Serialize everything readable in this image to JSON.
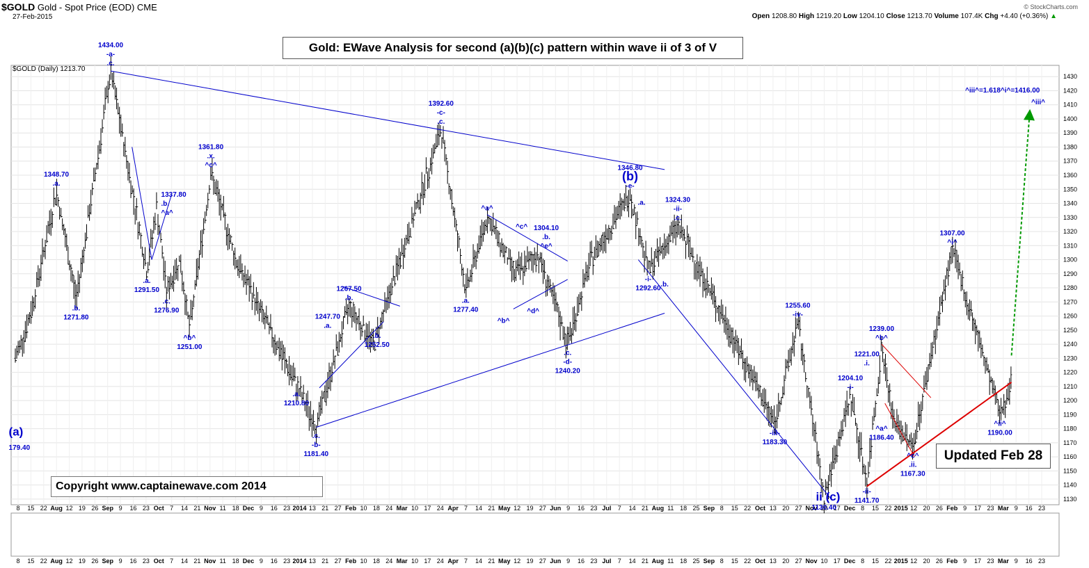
{
  "header": {
    "symbol": "$GOLD",
    "name": "Gold - Spot Price (EOD)",
    "exchange": "CME",
    "date": "27-Feb-2015",
    "ohlc": {
      "open_label": "Open",
      "open": "1208.80",
      "high_label": "High",
      "high": "1219.20",
      "low_label": "Low",
      "low": "1204.10",
      "close_label": "Close",
      "close": "1213.70",
      "volume_label": "Volume",
      "volume": "107.4K",
      "chg_label": "Chg",
      "chg": "+4.40 (+0.36%)",
      "chg_arrow": "▲"
    },
    "watermark": "© StockCharts.com"
  },
  "legend": "$GOLD (Daily) 1213.70",
  "title_box": "Gold: EWave Analysis for second (a)(b)(c) pattern within wave ii of 3 of V",
  "copyright_box": "Copyright   www.captainewave.com 2014",
  "updated_box": "Updated Feb 28",
  "colors": {
    "wave_label": "#0000cc",
    "trend_line": "#0000cc",
    "support_line": "#dd0000",
    "projection": "#009900",
    "bars": "#000000"
  },
  "chart_data": {
    "type": "ohlc",
    "ylim": [
      1126,
      1438
    ],
    "y_ticks": [
      1130,
      1140,
      1150,
      1160,
      1170,
      1180,
      1190,
      1200,
      1210,
      1220,
      1230,
      1240,
      1250,
      1260,
      1270,
      1280,
      1290,
      1300,
      1310,
      1320,
      1330,
      1340,
      1350,
      1360,
      1370,
      1380,
      1390,
      1400,
      1410,
      1420,
      1430
    ],
    "x_tick_labels": [
      "8",
      "15",
      "22",
      "Aug",
      "12",
      "19",
      "26",
      "Sep",
      "9",
      "16",
      "23",
      "Oct",
      "7",
      "14",
      "21",
      "Nov",
      "11",
      "18",
      "Dec",
      "9",
      "16",
      "23",
      "2014",
      "13",
      "21",
      "27",
      "Feb",
      "10",
      "18",
      "24",
      "Mar",
      "10",
      "17",
      "24",
      "Apr",
      "7",
      "14",
      "21",
      "May",
      "12",
      "19",
      "27",
      "Jun",
      "9",
      "16",
      "23",
      "Jul",
      "7",
      "14",
      "21",
      "Aug",
      "11",
      "18",
      "25",
      "Sep",
      "8",
      "15",
      "22",
      "Oct",
      "13",
      "20",
      "27",
      "Nov",
      "10",
      "17",
      "Dec",
      "8",
      "15",
      "22",
      "2015",
      "12",
      "20",
      "26",
      "Feb",
      "9",
      "17",
      "23",
      "Mar",
      "9",
      "16",
      "23"
    ],
    "path_pivots": [
      [
        "2013-07-01",
        1230
      ],
      [
        "2013-07-10",
        1260
      ],
      [
        "2013-07-26",
        1348.7
      ],
      [
        "2013-08-07",
        1271.8
      ],
      [
        "2013-08-28",
        1434.0
      ],
      [
        "2013-09-19",
        1291.5
      ],
      [
        "2013-09-25",
        1337.8
      ],
      [
        "2013-10-01",
        1276.9
      ],
      [
        "2013-10-09",
        1300
      ],
      [
        "2013-10-15",
        1251.0
      ],
      [
        "2013-10-28",
        1361.8
      ],
      [
        "2013-11-12",
        1300
      ],
      [
        "2013-12-19",
        1210.8
      ],
      [
        "2013-12-31",
        1181.4
      ],
      [
        "2014-01-20",
        1267.5
      ],
      [
        "2014-02-04",
        1240
      ],
      [
        "2014-03-17",
        1392.6
      ],
      [
        "2014-04-01",
        1277.4
      ],
      [
        "2014-04-14",
        1331
      ],
      [
        "2014-05-01",
        1290
      ],
      [
        "2014-05-15",
        1304.1
      ],
      [
        "2014-06-02",
        1240.2
      ],
      [
        "2014-06-16",
        1300
      ],
      [
        "2014-07-10",
        1346.8
      ],
      [
        "2014-07-21",
        1292.6
      ],
      [
        "2014-08-08",
        1324.3
      ],
      [
        "2014-10-06",
        1183.3
      ],
      [
        "2014-10-20",
        1255.6
      ],
      [
        "2014-11-05",
        1130.4
      ],
      [
        "2014-11-21",
        1204.1
      ],
      [
        "2014-12-01",
        1141.7
      ],
      [
        "2014-12-10",
        1239.0
      ],
      [
        "2014-12-17",
        1186.4
      ],
      [
        "2014-12-29",
        1167.3
      ],
      [
        "2015-01-22",
        1307.0
      ],
      [
        "2015-02-20",
        1190.0
      ],
      [
        "2015-02-27",
        1213.7
      ]
    ],
    "wave_labels": [
      {
        "x": "2013-08-28",
        "y": 1434.0,
        "lines": [
          "1434.00",
          "-a-",
          ".c."
        ],
        "pos": "above"
      },
      {
        "x": "2013-07-26",
        "y": 1348.7,
        "lines": [
          "1348.70",
          ".a."
        ],
        "pos": "above"
      },
      {
        "x": "2013-08-07",
        "y": 1271.8,
        "lines": [
          ".b.",
          "1271.80"
        ],
        "pos": "below"
      },
      {
        "x": "2013-09-19",
        "y": 1291.5,
        "lines": [
          ".a.",
          "1291.50"
        ],
        "pos": "below"
      },
      {
        "x": "2013-09-26",
        "y": 1337.8,
        "lines": [
          "1337.80",
          ".b.",
          "^a^"
        ],
        "pos": "right"
      },
      {
        "x": "2013-10-01",
        "y": 1276.9,
        "lines": [
          ".c.",
          "1276.90"
        ],
        "pos": "below"
      },
      {
        "x": "2013-10-15",
        "y": 1251.0,
        "lines": [
          "^b^",
          "1251.00"
        ],
        "pos": "below"
      },
      {
        "x": "2013-10-28",
        "y": 1361.8,
        "lines": [
          "1361.80",
          ".x.",
          "^c^"
        ],
        "pos": "above"
      },
      {
        "x": "2013-12-19",
        "y": 1210.8,
        "lines": [
          ".a.",
          "1210.80"
        ],
        "pos": "below"
      },
      {
        "x": "2013-12-31",
        "y": 1181.4,
        "lines": [
          ".c.",
          "-b-",
          "1181.40"
        ],
        "pos": "below"
      },
      {
        "x": "2014-01-20",
        "y": 1267.5,
        "lines": [
          "1267.50",
          ".b."
        ],
        "pos": "above"
      },
      {
        "x": "2014-01-07",
        "y": 1247.7,
        "lines": [
          "1247.70",
          ".a."
        ],
        "pos": "above"
      },
      {
        "x": "2014-02-06",
        "y": 1252.5,
        "lines": [
          ".b.",
          "1252.50"
        ],
        "pos": "below"
      },
      {
        "x": "2014-03-17",
        "y": 1392.6,
        "lines": [
          "1392.60",
          "-c-",
          ".c."
        ],
        "pos": "above"
      },
      {
        "x": "2014-04-01",
        "y": 1277.4,
        "lines": [
          ".a.",
          "1277.40"
        ],
        "pos": "below"
      },
      {
        "x": "2014-04-14",
        "y": 1331,
        "lines": [
          "^a^"
        ],
        "pos": "above"
      },
      {
        "x": "2014-04-24",
        "y": 1263,
        "lines": [
          "^b^"
        ],
        "pos": "below"
      },
      {
        "x": "2014-05-05",
        "y": 1318,
        "lines": [
          "^c^"
        ],
        "pos": "above"
      },
      {
        "x": "2014-05-12",
        "y": 1270,
        "lines": [
          "^d^"
        ],
        "pos": "below"
      },
      {
        "x": "2014-05-20",
        "y": 1304.1,
        "lines": [
          "1304.10",
          ".b.",
          "^e^"
        ],
        "pos": "above"
      },
      {
        "x": "2014-06-02",
        "y": 1240.2,
        "lines": [
          ".c.",
          "-d-",
          "1240.20"
        ],
        "pos": "below"
      },
      {
        "x": "2014-07-10",
        "y": 1346.8,
        "lines": [
          "1346.80",
          "(b)",
          "-e-"
        ],
        "pos": "above"
      },
      {
        "x": "2014-07-17",
        "y": 1335,
        "lines": [
          ".a."
        ],
        "pos": "above"
      },
      {
        "x": "2014-07-21",
        "y": 1292.6,
        "lines": [
          "-i-",
          "1292.60"
        ],
        "pos": "below"
      },
      {
        "x": "2014-07-31",
        "y": 1289,
        "lines": [
          ".b."
        ],
        "pos": "below"
      },
      {
        "x": "2014-08-08",
        "y": 1324.3,
        "lines": [
          "1324.30",
          "-ii-",
          ".c."
        ],
        "pos": "above"
      },
      {
        "x": "2014-10-06",
        "y": 1183.3,
        "lines": [
          "-iii-",
          "1183.30"
        ],
        "pos": "below"
      },
      {
        "x": "2014-10-20",
        "y": 1255.6,
        "lines": [
          "1255.60",
          "-iv-"
        ],
        "pos": "above"
      },
      {
        "x": "2014-11-05",
        "y": 1130.4,
        "lines": [
          "1130.40"
        ],
        "pos": "below"
      },
      {
        "x": "2014-11-21",
        "y": 1204.1,
        "lines": [
          "1204.10",
          "-i-"
        ],
        "pos": "above"
      },
      {
        "x": "2014-12-01",
        "y": 1141.7,
        "lines": [
          "-ii-",
          "1141.70"
        ],
        "pos": "below"
      },
      {
        "x": "2014-12-01",
        "y": 1221.0,
        "lines": [
          "1221.00",
          ".i."
        ],
        "pos": "above"
      },
      {
        "x": "2014-12-10",
        "y": 1239.0,
        "lines": [
          "1239.00",
          "^b^"
        ],
        "pos": "above"
      },
      {
        "x": "2014-12-10",
        "y": 1186.4,
        "lines": [
          "^a^",
          "1186.40"
        ],
        "pos": "below"
      },
      {
        "x": "2014-12-29",
        "y": 1167.3,
        "lines": [
          "^c^",
          ".ii.",
          "1167.30"
        ],
        "pos": "below"
      },
      {
        "x": "2015-01-22",
        "y": 1307.0,
        "lines": [
          "1307.00",
          "^i^"
        ],
        "pos": "above"
      },
      {
        "x": "2015-02-20",
        "y": 1190.0,
        "lines": [
          "^ii^",
          "1190.00"
        ],
        "pos": "below"
      }
    ],
    "big_labels": [
      {
        "text": "(a)",
        "x": "2013-06-27",
        "y": 1175
      },
      {
        "text": "179.40",
        "x": "2013-06-27",
        "y": 1165
      },
      {
        "text": "ii (c)",
        "x": "2014-10-31",
        "y": 1129
      }
    ],
    "projection_text": [
      "^iii^=1.618^i^=1416.00",
      "^iii^"
    ],
    "trend_lines": [
      {
        "from": [
          "2013-08-28",
          1434
        ],
        "to": [
          "2014-07-31",
          1364
        ],
        "color": "#0000cc"
      },
      {
        "from": [
          "2013-12-31",
          1181
        ],
        "to": [
          "2014-07-31",
          1262
        ],
        "color": "#0000cc"
      },
      {
        "from": [
          "2013-09-10",
          1380
        ],
        "to": [
          "2013-09-22",
          1300
        ],
        "color": "#0000cc"
      },
      {
        "from": [
          "2013-09-22",
          1300
        ],
        "to": [
          "2013-10-04",
          1346
        ],
        "color": "#0000cc"
      },
      {
        "from": [
          "2014-01-02",
          1209
        ],
        "to": [
          "2014-02-10",
          1256
        ],
        "color": "#0000cc"
      },
      {
        "from": [
          "2014-01-16",
          1281
        ],
        "to": [
          "2014-02-20",
          1267
        ],
        "color": "#0000cc"
      },
      {
        "from": [
          "2014-04-14",
          1332
        ],
        "to": [
          "2014-06-02",
          1299
        ],
        "color": "#0000cc"
      },
      {
        "from": [
          "2014-04-30",
          1265
        ],
        "to": [
          "2014-06-02",
          1286
        ],
        "color": "#0000cc"
      },
      {
        "from": [
          "2014-07-15",
          1300
        ],
        "to": [
          "2014-11-10",
          1129
        ],
        "color": "#0000cc"
      },
      {
        "from": [
          "2014-12-10",
          1240
        ],
        "to": [
          "2015-01-09",
          1202
        ],
        "color": "#dd0000"
      },
      {
        "from": [
          "2014-12-12",
          1198
        ],
        "to": [
          "2014-12-30",
          1160
        ],
        "color": "#dd0000"
      },
      {
        "from": [
          "2014-12-01",
          1139
        ],
        "to": [
          "2015-02-27",
          1213
        ],
        "color": "#dd0000",
        "width": 2
      },
      {
        "from": [
          "2015-02-27",
          1232
        ],
        "to": [
          "2015-03-10",
          1403
        ],
        "color": "#009900",
        "dashed": true,
        "arrow": true
      }
    ]
  }
}
